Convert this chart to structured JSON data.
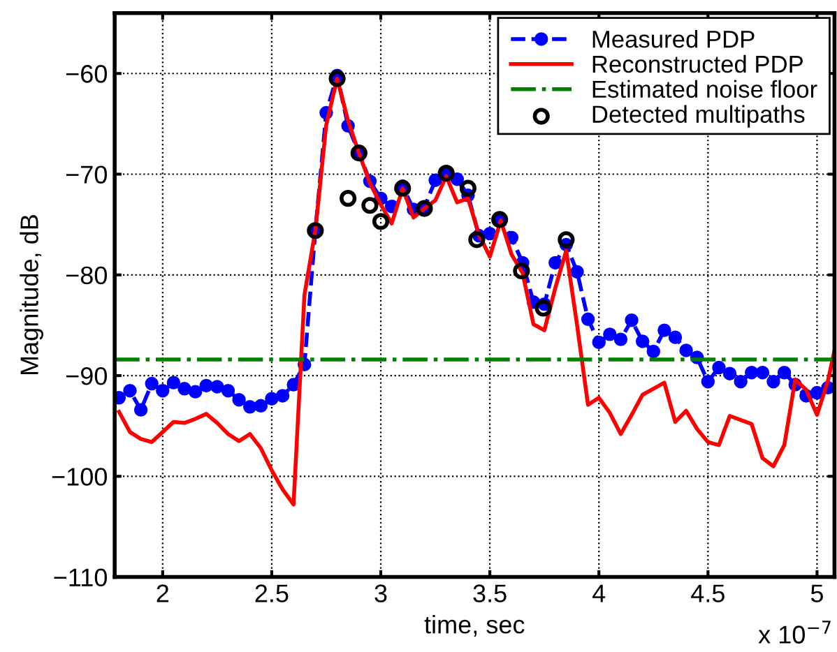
{
  "chart_data": {
    "type": "line",
    "xlabel": "time, sec",
    "ylabel": "Magnitude, dB",
    "annotations": [
      "x 10$^{−7}$"
    ],
    "xlim": [
      1.78,
      5.08
    ],
    "ylim": [
      -110,
      -54
    ],
    "xticks": [
      2,
      2.5,
      3,
      3.5,
      4,
      4.5,
      5
    ],
    "yticks": [
      -110,
      -100,
      -90,
      -80,
      -70,
      -60
    ],
    "grid": true,
    "legend": "top right",
    "series": [
      {
        "name": "Measured PDP",
        "color": "#0000ff",
        "marker": "circle",
        "line_style": "dashed",
        "x": [
          1.8,
          1.85,
          1.9,
          1.95,
          2.0,
          2.05,
          2.1,
          2.15,
          2.2,
          2.25,
          2.3,
          2.35,
          2.4,
          2.45,
          2.5,
          2.55,
          2.6,
          2.65,
          2.7,
          2.75,
          2.8,
          2.85,
          2.9,
          2.95,
          3.0,
          3.05,
          3.1,
          3.15,
          3.2,
          3.25,
          3.3,
          3.35,
          3.4,
          3.45,
          3.5,
          3.55,
          3.6,
          3.65,
          3.7,
          3.75,
          3.8,
          3.85,
          3.9,
          3.95,
          4.0,
          4.05,
          4.1,
          4.15,
          4.2,
          4.25,
          4.3,
          4.35,
          4.4,
          4.45,
          4.5,
          4.55,
          4.6,
          4.65,
          4.7,
          4.75,
          4.8,
          4.85,
          4.9,
          4.95,
          5.0,
          5.05
        ],
        "values": [
          -92.2,
          -91.5,
          -93.4,
          -90.8,
          -91.5,
          -90.7,
          -91.3,
          -91.6,
          -91.0,
          -91.1,
          -91.5,
          -92.4,
          -93.1,
          -93.0,
          -92.3,
          -92.0,
          -90.9,
          -88.9,
          -75.6,
          -63.9,
          -60.2,
          -65.2,
          -67.9,
          -70.7,
          -72.4,
          -73.2,
          -71.2,
          -73.5,
          -73.3,
          -70.6,
          -69.9,
          -70.5,
          -72.1,
          -76.1,
          -75.9,
          -74.5,
          -76.3,
          -78.8,
          -82.7,
          -82.9,
          -78.8,
          -77.0,
          -79.7,
          -84.4,
          -86.7,
          -85.9,
          -86.4,
          -84.5,
          -86.6,
          -87.6,
          -85.5,
          -86.2,
          -87.5,
          -88.2,
          -90.6,
          -89.2,
          -89.8,
          -90.6,
          -89.7,
          -89.7,
          -90.6,
          -89.7,
          -90.9,
          -92.0,
          -91.7,
          -91.2
        ]
      },
      {
        "name": "Reconstructed PDP",
        "color": "#ff0000",
        "marker": "none",
        "line_style": "solid",
        "x": [
          1.8,
          1.85,
          1.9,
          1.95,
          2.0,
          2.05,
          2.1,
          2.15,
          2.2,
          2.25,
          2.3,
          2.35,
          2.4,
          2.45,
          2.5,
          2.55,
          2.6,
          2.65,
          2.7,
          2.75,
          2.8,
          2.85,
          2.9,
          2.95,
          3.0,
          3.05,
          3.1,
          3.15,
          3.2,
          3.25,
          3.3,
          3.35,
          3.4,
          3.45,
          3.5,
          3.55,
          3.6,
          3.65,
          3.7,
          3.75,
          3.8,
          3.85,
          3.9,
          3.95,
          4.0,
          4.05,
          4.1,
          4.15,
          4.2,
          4.25,
          4.3,
          4.35,
          4.4,
          4.45,
          4.5,
          4.55,
          4.6,
          4.65,
          4.7,
          4.75,
          4.8,
          4.85,
          4.9,
          4.95,
          5.0,
          5.05,
          5.08
        ],
        "values": [
          -93.6,
          -95.6,
          -96.3,
          -96.6,
          -95.6,
          -94.6,
          -94.7,
          -94.3,
          -93.8,
          -94.7,
          -95.8,
          -96.5,
          -95.8,
          -97.2,
          -99.4,
          -101.3,
          -102.8,
          -82.0,
          -75.6,
          -65.1,
          -60.5,
          -64.7,
          -67.9,
          -70.9,
          -73.0,
          -74.9,
          -71.4,
          -74.3,
          -73.4,
          -72.6,
          -70.2,
          -72.8,
          -72.4,
          -76.0,
          -78.2,
          -74.6,
          -78.0,
          -79.8,
          -84.9,
          -85.5,
          -81.3,
          -77.6,
          -85.0,
          -92.9,
          -92.2,
          -93.7,
          -95.8,
          -93.9,
          -91.9,
          -91.3,
          -90.7,
          -94.6,
          -93.5,
          -95.3,
          -96.6,
          -96.9,
          -94.0,
          -94.4,
          -94.8,
          -98.2,
          -99.0,
          -96.9,
          -90.4,
          -91.4,
          -93.9,
          -90.5,
          -87.5
        ]
      },
      {
        "name": "Estimated noise floor",
        "color": "#008000",
        "marker": "none",
        "line_style": "dashdot",
        "x": [
          1.78,
          5.08
        ],
        "values": [
          -88.4,
          -88.4
        ]
      },
      {
        "name": "Detected multipaths",
        "type": "scatter",
        "color": "#000000",
        "marker": "circle",
        "x": [
          2.7,
          2.8,
          2.85,
          2.9,
          2.95,
          3.0,
          3.1,
          3.2,
          3.3,
          3.4,
          3.44,
          3.545,
          3.645,
          3.745,
          3.85
        ],
        "values": [
          -75.6,
          -60.5,
          -72.4,
          -67.9,
          -73.1,
          -74.7,
          -71.4,
          -73.4,
          -69.9,
          -71.4,
          -76.5,
          -74.5,
          -79.6,
          -83.3,
          -76.5
        ]
      }
    ]
  }
}
